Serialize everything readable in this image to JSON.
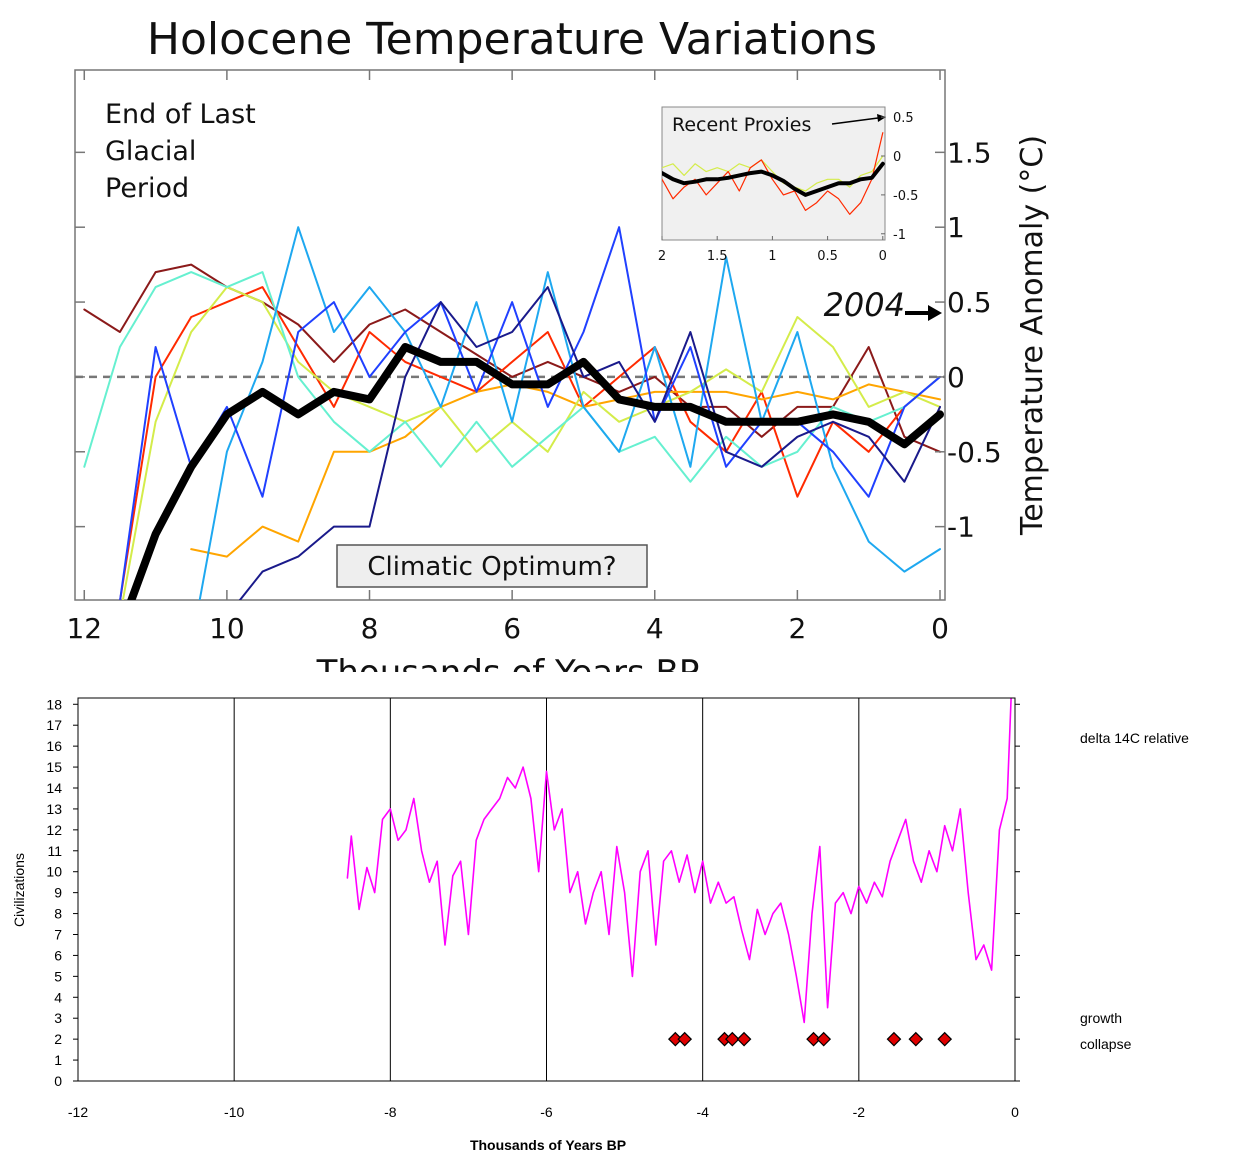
{
  "chart_data": [
    {
      "type": "line",
      "title": "Holocene Temperature Variations",
      "xlabel": "Thousands of Years BP",
      "ylabel": "Temperature Anomaly (°C)",
      "x": [
        12,
        11.5,
        11,
        10.5,
        10,
        9.5,
        9,
        8.5,
        8,
        7.5,
        7,
        6.5,
        6,
        5.5,
        5,
        4.5,
        4,
        3.5,
        3,
        2.5,
        2,
        1.5,
        1,
        0.5,
        0
      ],
      "xlim": [
        12.13,
        -0.07
      ],
      "ylim": [
        -1.49,
        2.05
      ],
      "xticks": [
        12,
        10,
        8,
        6,
        4,
        2,
        0
      ],
      "yticks": [
        -1,
        -0.5,
        0,
        0.5,
        1,
        1.5
      ],
      "reference_line": 0,
      "annotations": [
        "End of Last",
        "Glacial",
        "Period",
        "2004",
        "Climatic Optimum?"
      ],
      "series": [
        {
          "color": "#8b1a1a",
          "values": [
            0.45,
            0.3,
            0.7,
            0.75,
            0.6,
            0.5,
            0.35,
            0.1,
            0.35,
            0.45,
            0.3,
            0.15,
            0.0,
            0.1,
            0.0,
            -0.1,
            0.0,
            -0.2,
            -0.2,
            -0.4,
            -0.2,
            -0.2,
            0.2,
            -0.4,
            -0.5
          ]
        },
        {
          "color": "#ff2a00",
          "values": [
            -2,
            -1.5,
            0.0,
            0.4,
            0.5,
            0.6,
            0.2,
            -0.2,
            0.3,
            0.1,
            0.0,
            -0.1,
            0.1,
            0.3,
            -0.2,
            0.0,
            0.2,
            -0.3,
            -0.5,
            -0.1,
            -0.8,
            -0.3,
            -0.5,
            -0.2,
            0.0
          ]
        },
        {
          "color": "#ffa500",
          "values": [
            null,
            null,
            null,
            -1.15,
            -1.2,
            -1.0,
            -1.1,
            -0.5,
            -0.5,
            -0.4,
            -0.2,
            -0.1,
            -0.05,
            -0.1,
            -0.2,
            -0.15,
            -0.1,
            -0.1,
            -0.1,
            -0.15,
            -0.1,
            -0.15,
            -0.05,
            -0.1,
            -0.15
          ]
        },
        {
          "color": "#d4ec4a",
          "values": [
            null,
            -1.6,
            -0.3,
            0.3,
            0.6,
            0.5,
            0.1,
            -0.1,
            -0.2,
            -0.3,
            -0.2,
            -0.5,
            -0.3,
            -0.5,
            -0.1,
            -0.3,
            -0.2,
            -0.1,
            0.05,
            -0.1,
            0.4,
            0.2,
            -0.2,
            -0.1,
            -0.2
          ]
        },
        {
          "color": "#66f0d0",
          "values": [
            -0.6,
            0.2,
            0.6,
            0.7,
            0.6,
            0.7,
            0.0,
            -0.3,
            -0.5,
            -0.3,
            -0.6,
            -0.3,
            -0.6,
            -0.4,
            -0.2,
            -0.5,
            -0.4,
            -0.7,
            -0.4,
            -0.6,
            -0.5,
            -0.2,
            -0.3,
            -0.2,
            0.0
          ]
        },
        {
          "color": "#1ea8f0",
          "values": [
            null,
            null,
            null,
            -1.8,
            -0.5,
            0.1,
            1.0,
            0.3,
            0.6,
            0.3,
            -0.2,
            0.5,
            -0.3,
            0.7,
            -0.2,
            -0.5,
            0.2,
            -0.6,
            0.8,
            -0.3,
            0.3,
            -0.6,
            -1.1,
            -1.3,
            -1.15
          ]
        },
        {
          "color": "#2040ff",
          "values": [
            null,
            -1.5,
            0.2,
            -0.6,
            -0.2,
            -0.8,
            0.3,
            0.5,
            0.0,
            0.3,
            0.5,
            -0.1,
            0.5,
            -0.2,
            0.3,
            1.0,
            -0.3,
            0.2,
            -0.6,
            -0.3,
            -0.3,
            -0.5,
            -0.8,
            -0.2,
            0.0
          ]
        },
        {
          "color": "#1a1a8b",
          "values": [
            null,
            null,
            null,
            null,
            -1.6,
            -1.3,
            -1.2,
            -1.0,
            -1.0,
            0.0,
            0.5,
            0.2,
            0.3,
            0.6,
            0.0,
            0.1,
            -0.3,
            0.3,
            -0.5,
            -0.6,
            -0.4,
            -0.3,
            -0.4,
            -0.7,
            -0.2
          ]
        },
        {
          "color": "#000000",
          "line_width": 8,
          "values": [
            null,
            -1.7,
            -1.05,
            -0.6,
            -0.25,
            -0.1,
            -0.25,
            -0.1,
            -0.15,
            0.2,
            0.1,
            0.1,
            -0.05,
            -0.05,
            0.1,
            -0.15,
            -0.2,
            -0.2,
            -0.3,
            -0.3,
            -0.3,
            -0.25,
            -0.3,
            -0.45,
            -0.25
          ]
        }
      ],
      "inset": {
        "title": "Recent Proxies",
        "x": [
          2,
          1.9,
          1.8,
          1.7,
          1.6,
          1.5,
          1.4,
          1.3,
          1.2,
          1.1,
          1,
          0.9,
          0.8,
          0.7,
          0.6,
          0.5,
          0.4,
          0.3,
          0.2,
          0.1,
          0
        ],
        "xlim": [
          2,
          -0.02
        ],
        "ylim": [
          -1.08,
          0.63
        ],
        "xticks": [
          2,
          1.5,
          1,
          0.5,
          0
        ],
        "yticks": [
          0.5,
          0,
          -0.5,
          -1
        ],
        "series": [
          {
            "color": "#d4ec4a",
            "values": [
              -0.15,
              -0.1,
              -0.25,
              -0.1,
              -0.2,
              -0.15,
              -0.2,
              -0.1,
              -0.15,
              -0.05,
              -0.2,
              -0.35,
              -0.4,
              -0.45,
              -0.35,
              -0.3,
              -0.3,
              -0.4,
              -0.25,
              -0.2,
              0.0
            ]
          },
          {
            "color": "#ff2a00",
            "values": [
              -0.3,
              -0.55,
              -0.4,
              -0.3,
              -0.5,
              -0.35,
              -0.2,
              -0.45,
              -0.15,
              -0.05,
              -0.3,
              -0.5,
              -0.45,
              -0.7,
              -0.6,
              -0.45,
              -0.55,
              -0.75,
              -0.6,
              -0.3,
              0.3
            ]
          },
          {
            "color": "#000000",
            "line_width": 4,
            "values": [
              -0.22,
              -0.3,
              -0.35,
              -0.33,
              -0.3,
              -0.3,
              -0.28,
              -0.25,
              -0.22,
              -0.2,
              -0.25,
              -0.32,
              -0.42,
              -0.5,
              -0.45,
              -0.4,
              -0.35,
              -0.35,
              -0.3,
              -0.28,
              -0.1
            ]
          }
        ]
      }
    },
    {
      "type": "line",
      "xlabel": "Thousands of Years BP",
      "ylabel": "Civilizations",
      "x": [
        -8.55,
        -8.5,
        -8.4,
        -8.3,
        -8.2,
        -8.1,
        -8.0,
        -7.9,
        -7.8,
        -7.7,
        -7.6,
        -7.5,
        -7.4,
        -7.3,
        -7.2,
        -7.1,
        -7.0,
        -6.9,
        -6.8,
        -6.7,
        -6.6,
        -6.5,
        -6.4,
        -6.3,
        -6.2,
        -6.1,
        -6.0,
        -5.9,
        -5.8,
        -5.7,
        -5.6,
        -5.5,
        -5.4,
        -5.3,
        -5.2,
        -5.1,
        -5.0,
        -4.9,
        -4.8,
        -4.7,
        -4.6,
        -4.5,
        -4.4,
        -4.3,
        -4.2,
        -4.1,
        -4.0,
        -3.9,
        -3.8,
        -3.7,
        -3.6,
        -3.5,
        -3.4,
        -3.3,
        -3.2,
        -3.1,
        -3.0,
        -2.9,
        -2.8,
        -2.7,
        -2.6,
        -2.5,
        -2.4,
        -2.3,
        -2.2,
        -2.1,
        -2.0,
        -1.9,
        -1.8,
        -1.7,
        -1.6,
        -1.5,
        -1.4,
        -1.3,
        -1.2,
        -1.1,
        -1.0,
        -0.9,
        -0.8,
        -0.7,
        -0.6,
        -0.5,
        -0.4,
        -0.3,
        -0.2,
        -0.1,
        -0.05
      ],
      "xlim": [
        -12,
        0
      ],
      "ylim": [
        0,
        18.3
      ],
      "xticks": [
        -12,
        -10,
        -8,
        -6,
        -4,
        -2,
        0
      ],
      "yticks": [
        0,
        1,
        2,
        3,
        4,
        5,
        6,
        7,
        8,
        9,
        10,
        11,
        12,
        13,
        14,
        15,
        16,
        17,
        18
      ],
      "grid_x": true,
      "annotations": [
        "growth"
      ],
      "series": [
        {
          "name": "delta 14C relative",
          "color": "#ff00ff",
          "values": [
            9.7,
            11.7,
            8.2,
            10.2,
            9.0,
            12.5,
            13.0,
            11.5,
            12.0,
            13.5,
            11.0,
            9.5,
            10.5,
            6.5,
            9.8,
            10.5,
            7.0,
            11.5,
            12.5,
            13.0,
            13.5,
            14.5,
            14.0,
            15.0,
            13.5,
            10.0,
            14.8,
            12.0,
            13.0,
            9.0,
            10.0,
            7.5,
            9.0,
            10.0,
            7.0,
            11.2,
            9.0,
            5.0,
            10.0,
            11.0,
            6.5,
            10.5,
            11.0,
            9.5,
            10.8,
            9.0,
            10.5,
            8.5,
            9.5,
            8.5,
            8.8,
            7.2,
            5.8,
            8.2,
            7.0,
            8.0,
            8.5,
            7.0,
            5.0,
            2.8,
            8.0,
            11.2,
            3.5,
            8.5,
            9.0,
            8.0,
            9.3,
            8.5,
            9.5,
            8.8,
            10.5,
            11.5,
            12.5,
            10.5,
            9.5,
            11.0,
            10.0,
            12.2,
            11.0,
            13.0,
            9.0,
            5.8,
            6.5,
            5.3,
            12.0,
            13.5,
            18.3
          ]
        }
      ],
      "markers": {
        "name": "collapse",
        "color": "#e00000",
        "x": [
          -4.35,
          -4.23,
          -3.72,
          -3.62,
          -3.47,
          -2.58,
          -2.45,
          -1.55,
          -1.27,
          -0.9
        ],
        "values": [
          2,
          2,
          2,
          2,
          2,
          2,
          2,
          2,
          2,
          2
        ]
      }
    }
  ]
}
